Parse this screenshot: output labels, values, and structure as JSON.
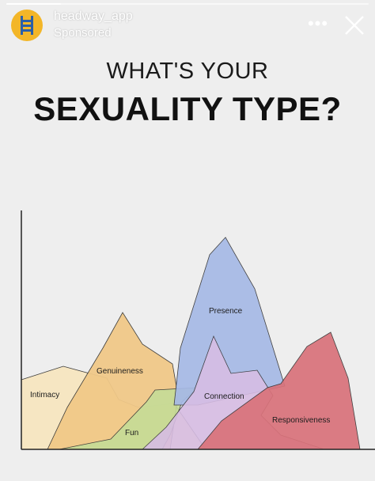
{
  "header": {
    "account_name": "headway_app",
    "sponsored_label": "Sponsored",
    "avatar_icon": "ladder-icon",
    "more_icon": "more-options-icon",
    "more_label": "•••",
    "close_icon": "close-icon",
    "story_progress": 0.15
  },
  "ad": {
    "title_line1": "WHAT'S YOUR",
    "title_line2": "SEXUALITY TYPE?"
  },
  "colors": {
    "background": "#eeeeee",
    "avatar": "#f3b628",
    "intimacy": "#f7e6c0",
    "genuineness": "#f1c988",
    "fun": "#c5dc97",
    "presence": "#a6b9e6",
    "connection": "#d7bde4",
    "responsiveness": "#d9727a"
  },
  "chart_data": {
    "type": "area",
    "title": "",
    "grid": false,
    "axes": "y-axis and x-axis lines only, no ticks",
    "series": [
      {
        "name": "Intimacy",
        "color": "#f7e6c0"
      },
      {
        "name": "Genuineness",
        "color": "#f1c988"
      },
      {
        "name": "Fun",
        "color": "#c5dc97"
      },
      {
        "name": "Presence",
        "color": "#a6b9e6"
      },
      {
        "name": "Connection",
        "color": "#d7bde4"
      },
      {
        "name": "Responsiveness",
        "color": "#d9727a"
      }
    ]
  }
}
